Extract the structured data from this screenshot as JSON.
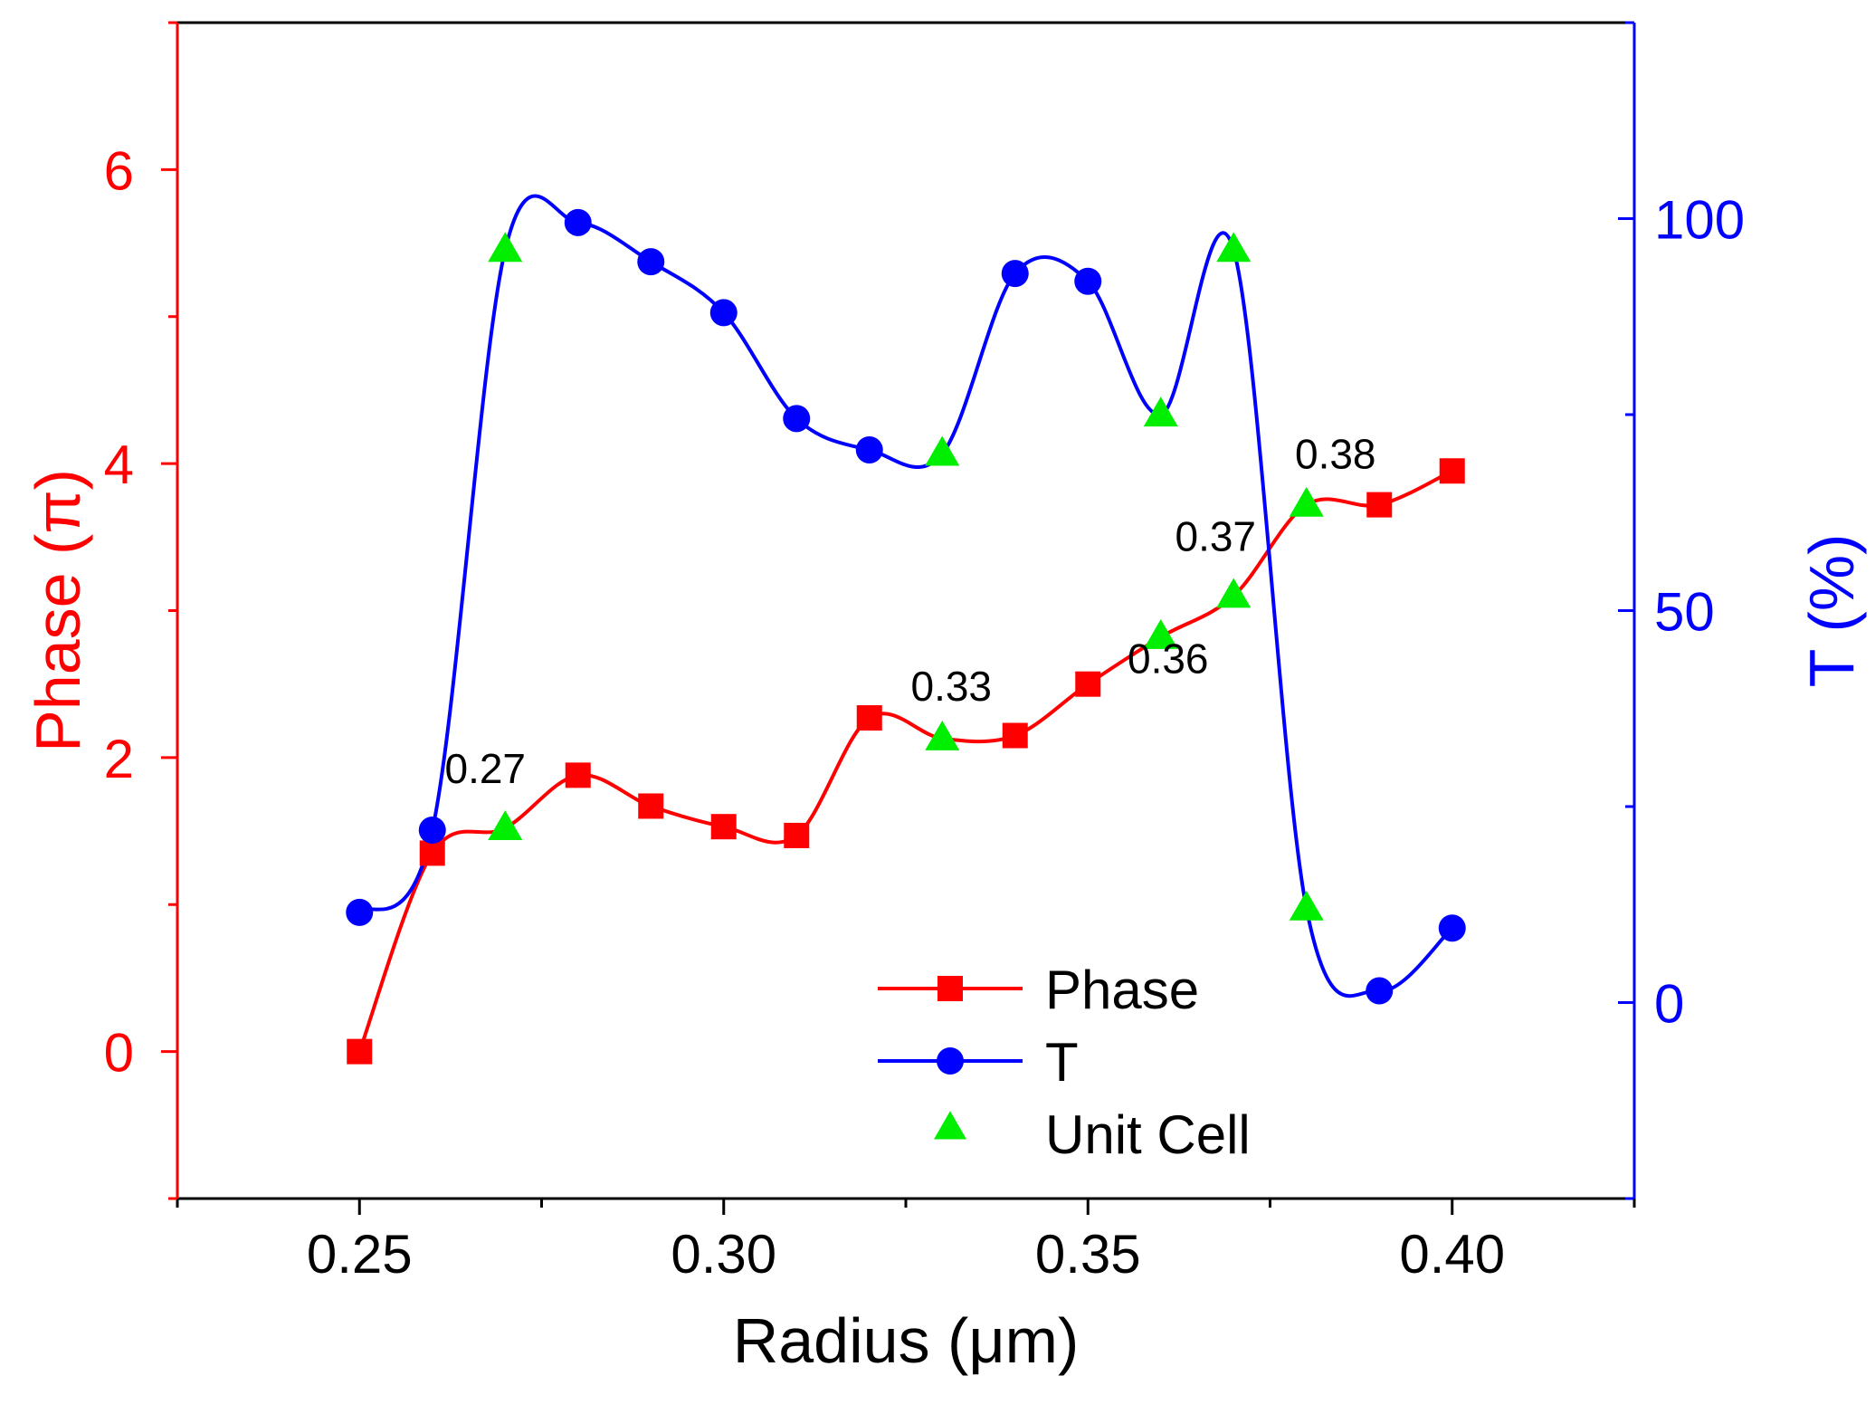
{
  "chart_data": {
    "type": "line",
    "title": "",
    "xlabel": "Radius (μm)",
    "ylabel_left": "Phase (π)",
    "ylabel_right": "T (%)",
    "xlim": [
      0.225,
      0.425
    ],
    "ylim_left": [
      -1,
      7
    ],
    "ylim_right": [
      -25,
      125
    ],
    "x_ticks": [
      0.25,
      0.3,
      0.35,
      0.4
    ],
    "x_tick_labels": [
      "0.25",
      "0.30",
      "0.35",
      "0.40"
    ],
    "y_left_ticks": [
      0,
      2,
      4,
      6
    ],
    "y_left_tick_labels": [
      "0",
      "2",
      "4",
      "6"
    ],
    "y_right_ticks": [
      0,
      50,
      100
    ],
    "y_right_tick_labels": [
      "0",
      "50",
      "100"
    ],
    "legend_position": "bottom-center",
    "series": [
      {
        "name": "Phase",
        "axis": "left",
        "color": "#ff0000",
        "marker": "square",
        "x": [
          0.25,
          0.26,
          0.27,
          0.28,
          0.29,
          0.3,
          0.31,
          0.32,
          0.33,
          0.34,
          0.35,
          0.36,
          0.37,
          0.38,
          0.39,
          0.4
        ],
        "values": [
          0.0,
          1.35,
          1.52,
          1.88,
          1.67,
          1.53,
          1.47,
          2.27,
          2.13,
          2.15,
          2.5,
          2.82,
          3.1,
          3.72,
          3.72,
          3.95
        ]
      },
      {
        "name": "T",
        "axis": "right",
        "color": "#0000ff",
        "marker": "circle",
        "x": [
          0.25,
          0.26,
          0.27,
          0.28,
          0.29,
          0.3,
          0.31,
          0.32,
          0.33,
          0.34,
          0.35,
          0.36,
          0.37,
          0.38,
          0.39,
          0.4
        ],
        "values": [
          11.5,
          22,
          96,
          99.5,
          94.5,
          88,
          74.5,
          70.5,
          70,
          93,
          92,
          75,
          96,
          12,
          1.5,
          9.5
        ]
      }
    ],
    "unit_cell": {
      "name": "Unit Cell",
      "color": "#00ee00",
      "marker": "triangle",
      "on_phase": [
        {
          "x": 0.27,
          "y": 1.52
        },
        {
          "x": 0.33,
          "y": 2.13
        },
        {
          "x": 0.36,
          "y": 2.82
        },
        {
          "x": 0.37,
          "y": 3.1
        },
        {
          "x": 0.38,
          "y": 3.72
        }
      ],
      "on_T": [
        {
          "x": 0.27,
          "y": 96
        },
        {
          "x": 0.33,
          "y": 70
        },
        {
          "x": 0.36,
          "y": 75
        },
        {
          "x": 0.37,
          "y": 96
        },
        {
          "x": 0.38,
          "y": 12
        }
      ]
    },
    "annotations": [
      {
        "text": "0.27",
        "x": 0.27,
        "y": 1.52
      },
      {
        "text": "0.33",
        "x": 0.33,
        "y": 2.13
      },
      {
        "text": "0.36",
        "x": 0.36,
        "y": 2.82
      },
      {
        "text": "0.37",
        "x": 0.37,
        "y": 3.1
      },
      {
        "text": "0.38",
        "x": 0.38,
        "y": 3.72
      }
    ],
    "legend": [
      {
        "label": "Phase",
        "color": "#ff0000",
        "marker": "square",
        "line": true
      },
      {
        "label": "T",
        "color": "#0000ff",
        "marker": "circle",
        "line": true
      },
      {
        "label": "Unit Cell",
        "color": "#00ee00",
        "marker": "triangle",
        "line": false
      }
    ],
    "colors": {
      "axis_bottom": "#000000",
      "axis_left": "#ff0000",
      "axis_right": "#0000ff"
    }
  }
}
